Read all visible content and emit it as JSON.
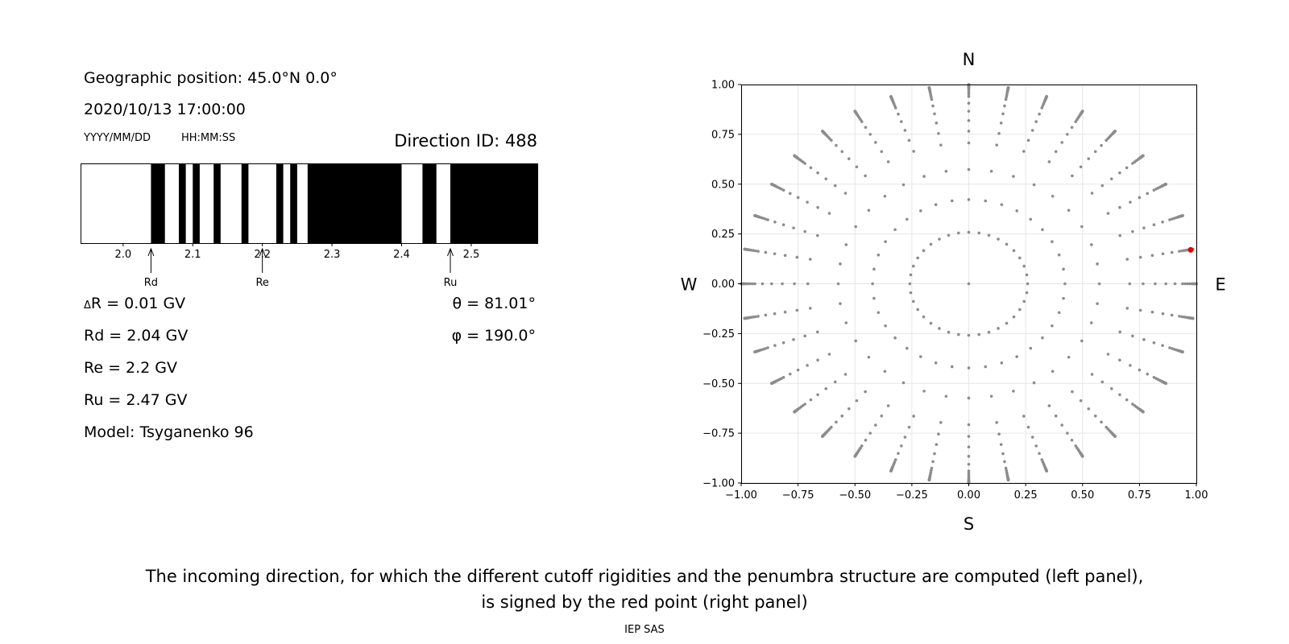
{
  "info": {
    "geo_position": "Geographic position: 45.0°N 0.0°",
    "datetime": "2020/10/13 17:00:00",
    "date_format": "YYYY/MM/DD",
    "time_format": "HH:MM:SS",
    "direction_id": "Direction ID: 488"
  },
  "penumbra": {
    "x_range": [
      1.94,
      2.595
    ],
    "ticks": [
      "2.0",
      "2.1",
      "2.2",
      "2.3",
      "2.4",
      "2.5"
    ],
    "tick_values": [
      2.0,
      2.1,
      2.2,
      2.3,
      2.4,
      2.5
    ],
    "black_bands": [
      [
        2.04,
        2.06
      ],
      [
        2.08,
        2.09
      ],
      [
        2.1,
        2.11
      ],
      [
        2.13,
        2.14
      ],
      [
        2.17,
        2.18
      ],
      [
        2.22,
        2.23
      ],
      [
        2.24,
        2.25
      ],
      [
        2.265,
        2.4
      ],
      [
        2.43,
        2.45
      ],
      [
        2.47,
        2.595
      ]
    ],
    "markers": [
      {
        "label": "Rd",
        "value": 2.04
      },
      {
        "label": "Re",
        "value": 2.2
      },
      {
        "label": "Ru",
        "value": 2.47
      }
    ],
    "colors": {
      "band": "#000000",
      "background": "#ffffff"
    }
  },
  "results": {
    "delta_r": "R = 0.01 GV",
    "delta_symbol": "Δ",
    "rd": "Rd = 2.04 GV",
    "re": "Re = 2.2 GV",
    "ru": "Ru = 2.47 GV",
    "model": "Model: Tsyganenko 96",
    "theta": "θ = 81.01°",
    "phi": "φ = 190.0°"
  },
  "sky_map": {
    "compass": {
      "north": "N",
      "south": "S",
      "west": "W",
      "east": "E"
    },
    "xlim": [
      -1.0,
      1.0
    ],
    "ylim": [
      -1.0,
      1.0
    ],
    "ticks": [
      "−1.00",
      "−0.75",
      "−0.50",
      "−0.25",
      "0.00",
      "0.25",
      "0.50",
      "0.75",
      "1.00"
    ],
    "tick_values": [
      -1.0,
      -0.75,
      -0.5,
      -0.25,
      0.0,
      0.25,
      0.5,
      0.75,
      1.0
    ],
    "grid": true,
    "radial_rays": 36,
    "ray_angle_step_deg": 10,
    "zenith_angles_deg": [
      0,
      15,
      25,
      35,
      45,
      50,
      55,
      60,
      65,
      70,
      72,
      74,
      76,
      78,
      79,
      80,
      81,
      82,
      83,
      84,
      85,
      86,
      87,
      88,
      89,
      90
    ],
    "selected_point": {
      "x": 0.975,
      "y": 0.17
    },
    "colors": {
      "points": "#8c8c8c",
      "selected": "#e8000b",
      "grid": "#e6e6e6"
    }
  },
  "caption": {
    "line1": "The incoming direction, for which the different cutoff rigidities and the penumbra structure are computed (left panel),",
    "line2": "is signed by the red point (right panel)",
    "credit": "IEP SAS"
  }
}
